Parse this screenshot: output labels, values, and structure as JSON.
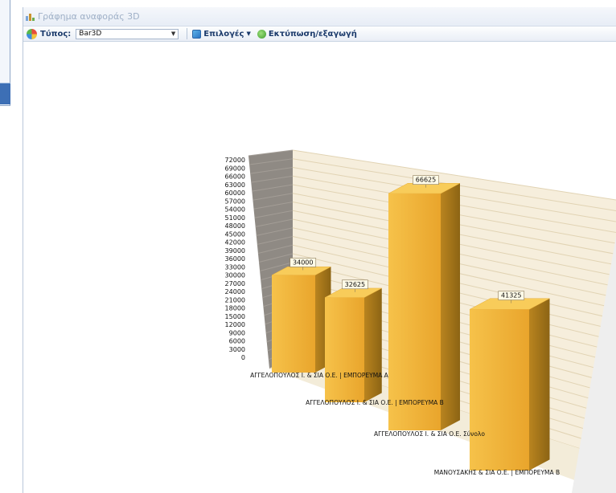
{
  "window": {
    "title": "Γράφημα αναφοράς 3D"
  },
  "toolbar": {
    "type_label": "Τύπος:",
    "type_value": "Bar3D",
    "options_label": "Επιλογές",
    "print_label": "Εκτύπωση/εξαγωγή"
  },
  "colors": {
    "bar_front": "#f2b43c",
    "bar_top": "#f8cc5a",
    "bar_side": "#b07d1e",
    "back_wall": "#f6eedc",
    "left_wall": "#8f8a84",
    "floor": "#f3ecd9"
  },
  "chart_data": {
    "type": "bar",
    "categories": [
      "ΑΓΓΕΛΟΠΟΥΛΟΣ Ι. & ΣΙΑ Ο.Ε. | ΕΜΠΟΡΕΥΜΑ Α",
      "ΑΓΓΕΛΟΠΟΥΛΟΣ Ι. & ΣΙΑ Ο.Ε. | ΕΜΠΟΡΕΥΜΑ Β",
      "ΑΓΓΕΛΟΠΟΥΛΟΣ Ι. & ΣΙΑ Ο.Ε. Σύνολο",
      "ΜΑΝΟΥΣΑΚΗΣ & ΣΙΑ Ο.Ε. | ΕΜΠΟΡΕΥΜΑ Β"
    ],
    "values": [
      34000,
      32625,
      66625,
      41325
    ],
    "data_labels": [
      "34000",
      "32625",
      "66625",
      "41325"
    ],
    "y_ticks": [
      0,
      3000,
      6000,
      9000,
      12000,
      15000,
      18000,
      21000,
      24000,
      27000,
      30000,
      33000,
      36000,
      39000,
      42000,
      45000,
      48000,
      51000,
      54000,
      57000,
      60000,
      63000,
      66000,
      69000,
      72000
    ],
    "ylim": [
      0,
      72000
    ],
    "grid": true,
    "legend": "none"
  }
}
